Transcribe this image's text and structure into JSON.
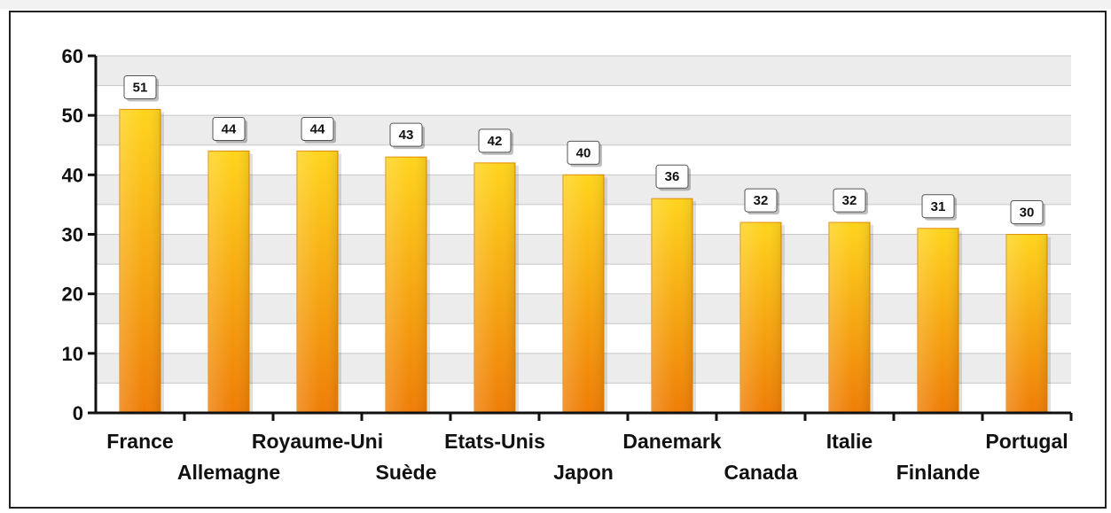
{
  "chart_data": {
    "type": "bar",
    "categories": [
      "France",
      "Allemagne",
      "Royaume-Uni",
      "Suède",
      "Etats-Unis",
      "Japon",
      "Danemark",
      "Canada",
      "Italie",
      "Finlande",
      "Portugal"
    ],
    "values": [
      51,
      44,
      44,
      43,
      42,
      40,
      36,
      32,
      32,
      31,
      30
    ],
    "value_labels": [
      "51",
      "44",
      "44",
      "43",
      "42",
      "40",
      "36",
      "32",
      "32",
      "31",
      "30"
    ],
    "yticks": [
      "0",
      "10",
      "20",
      "30",
      "40",
      "50",
      "60"
    ],
    "title": "",
    "xlabel": "",
    "ylabel": "",
    "ylim": [
      0,
      60
    ],
    "grid": true,
    "legend": "none",
    "colors": {
      "bar_top": "#ffd41c",
      "bar_bottom": "#ef7d06",
      "bar_edge": "#e08a00",
      "band": "#ececec",
      "grid": "#c8c8c8",
      "axis": "#111111"
    }
  }
}
